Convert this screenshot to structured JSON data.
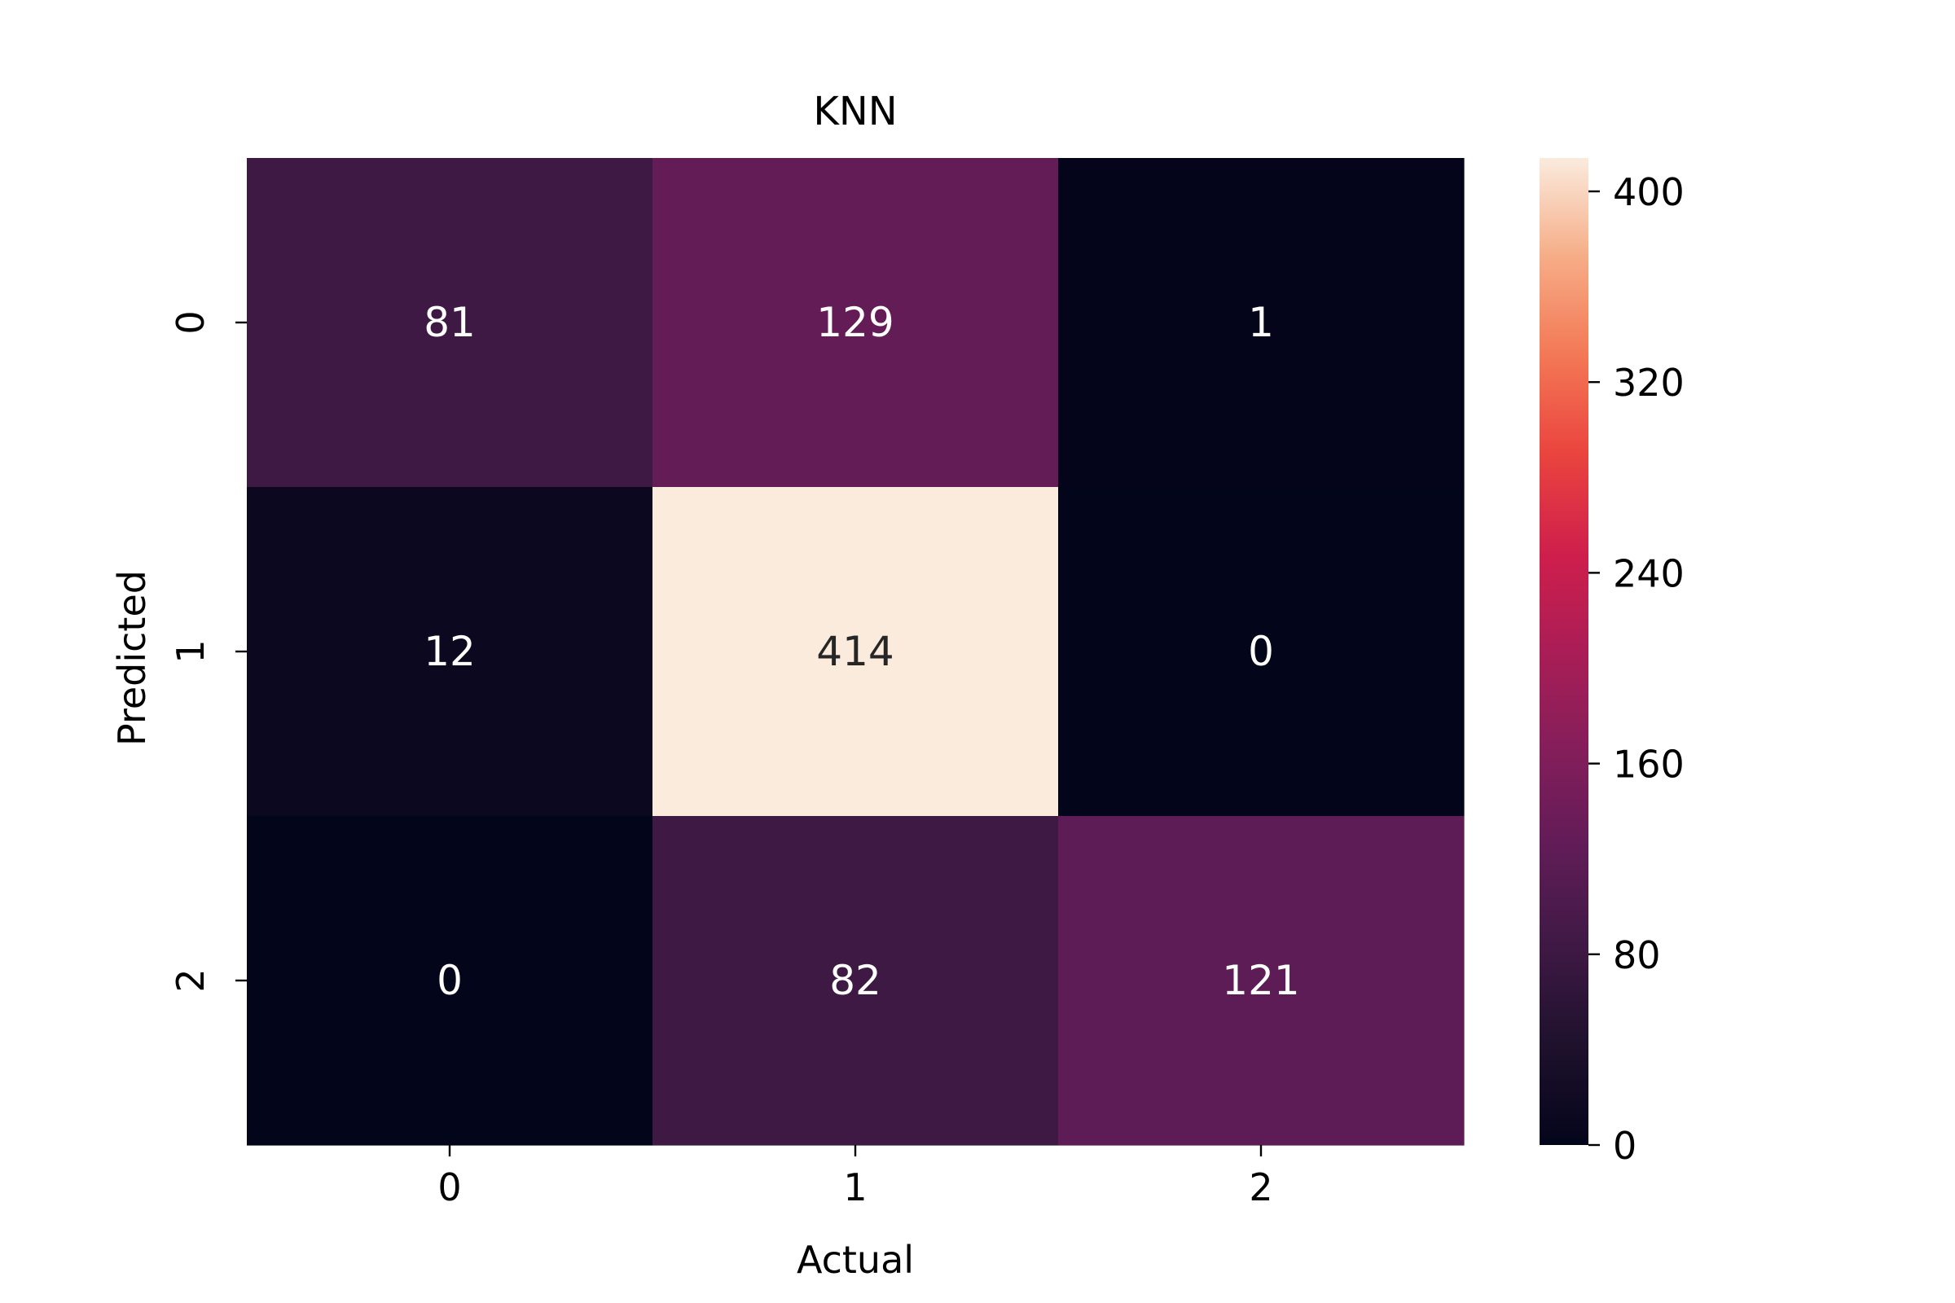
{
  "chart_data": {
    "type": "heatmap",
    "title": "KNN",
    "xlabel": "Actual",
    "ylabel": "Predicted",
    "x_categories": [
      "0",
      "1",
      "2"
    ],
    "y_categories": [
      "0",
      "1",
      "2"
    ],
    "values": [
      [
        81,
        129,
        1
      ],
      [
        12,
        414,
        0
      ],
      [
        0,
        82,
        121
      ]
    ],
    "colorbar": {
      "colormap": "rocket",
      "range": [
        0,
        414
      ],
      "ticks": [
        0,
        80,
        160,
        240,
        320,
        400
      ]
    },
    "annotation_colors": {
      "light": "#ffffff",
      "dark": "#262626"
    }
  }
}
